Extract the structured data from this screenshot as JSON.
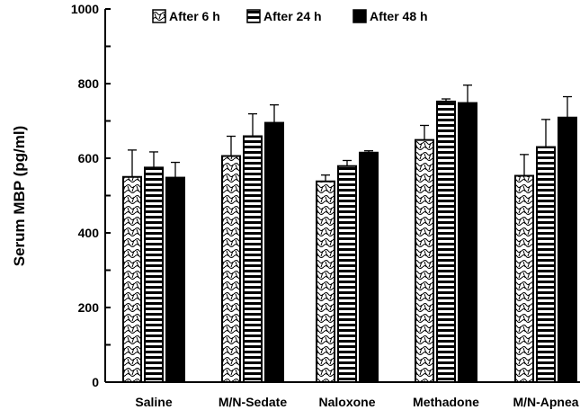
{
  "chart_data": {
    "type": "bar",
    "title": "",
    "xlabel": "",
    "ylabel": "Serum MBP (pg/ml)",
    "ylim": [
      0,
      1000
    ],
    "yticks": [
      0,
      200,
      400,
      600,
      800,
      1000
    ],
    "ytick_labels": [
      "0",
      "200",
      "400",
      "600",
      "800",
      "1000"
    ],
    "minor_ytick_step": 100,
    "grid": false,
    "legend_position": "top",
    "categories": [
      "Saline",
      "M/N-Sedate",
      "Naloxone",
      "Methadone",
      "M/N-Apnea"
    ],
    "series": [
      {
        "name": "After 6 h",
        "fill": "wavy-hatch",
        "values": [
          550,
          606,
          538,
          649,
          553
        ],
        "errors": [
          72,
          53,
          17,
          39,
          57
        ]
      },
      {
        "name": "After 24 h",
        "fill": "horizontal-stripes",
        "values": [
          575,
          659,
          579,
          752,
          630
        ],
        "errors": [
          42,
          60,
          15,
          7,
          74
        ]
      },
      {
        "name": "After 48 h",
        "fill": "solid-black",
        "values": [
          548,
          695,
          615,
          748,
          709
        ],
        "errors": [
          41,
          48,
          5,
          48,
          56
        ]
      }
    ]
  }
}
